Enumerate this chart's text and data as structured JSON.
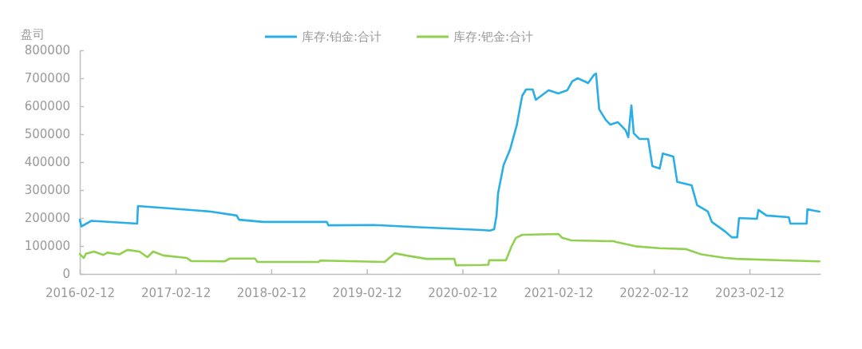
{
  "chart_data": {
    "type": "line",
    "ylabel": "盘司",
    "legend": "top",
    "grid": false,
    "marker": "none",
    "line_style": "solid",
    "xlim": [
      "2016-02-12",
      "2023-11-10"
    ],
    "xticks": [
      "2016-02-12",
      "2017-02-12",
      "2018-02-12",
      "2019-02-12",
      "2020-02-12",
      "2021-02-12",
      "2022-02-12",
      "2023-02-12"
    ],
    "ylim": [
      0,
      800000
    ],
    "yticks": [
      0,
      100000,
      200000,
      300000,
      400000,
      500000,
      600000,
      700000,
      800000
    ],
    "series": [
      {
        "name": "库存:铂金:合计",
        "color": "#29aee6",
        "x": [
          "2016-02-12",
          "2016-02-18",
          "2016-03-27",
          "2016-09-18",
          "2016-09-21",
          "2017-01-12",
          "2017-06-27",
          "2017-10-03",
          "2017-10-12",
          "2018-01-12",
          "2018-09-12",
          "2018-09-18",
          "2019-03-12",
          "2019-08-12",
          "2019-12-12",
          "2020-04-27",
          "2020-05-27",
          "2020-06-12",
          "2020-06-21",
          "2020-06-27",
          "2020-07-18",
          "2020-08-12",
          "2020-09-06",
          "2020-09-27",
          "2020-10-12",
          "2020-11-06",
          "2020-11-18",
          "2021-01-06",
          "2021-02-12",
          "2021-03-18",
          "2021-04-06",
          "2021-04-27",
          "2021-06-06",
          "2021-06-27",
          "2021-07-06",
          "2021-07-18",
          "2021-08-12",
          "2021-08-30",
          "2021-09-27",
          "2021-10-27",
          "2021-11-06",
          "2021-11-18",
          "2021-11-27",
          "2021-12-18",
          "2022-01-21",
          "2022-02-06",
          "2022-03-06",
          "2022-03-18",
          "2022-04-27",
          "2022-05-12",
          "2022-07-06",
          "2022-07-27",
          "2022-09-06",
          "2022-09-21",
          "2022-11-12",
          "2022-12-06",
          "2022-12-27",
          "2023-01-03",
          "2023-03-12",
          "2023-03-18",
          "2023-04-18",
          "2023-07-12",
          "2023-07-18",
          "2023-09-18",
          "2023-09-21",
          "2023-11-06"
        ],
        "values": [
          194000,
          170000,
          190000,
          180000,
          243000,
          235000,
          223000,
          209000,
          194000,
          186000,
          186000,
          174000,
          175000,
          168000,
          163000,
          157000,
          155000,
          160000,
          209000,
          289000,
          389000,
          446000,
          531000,
          637000,
          660000,
          660000,
          623000,
          657000,
          646000,
          657000,
          689000,
          700000,
          683000,
          711000,
          717000,
          589000,
          551000,
          534000,
          543000,
          514000,
          489000,
          603000,
          503000,
          483000,
          483000,
          386000,
          377000,
          431000,
          420000,
          329000,
          317000,
          246000,
          223000,
          186000,
          151000,
          131000,
          131000,
          200000,
          197000,
          229000,
          209000,
          203000,
          180000,
          180000,
          231000,
          223000
        ]
      },
      {
        "name": "库存:钯金:合计",
        "color": "#92d050",
        "x": [
          "2016-02-12",
          "2016-02-27",
          "2016-03-06",
          "2016-04-06",
          "2016-05-12",
          "2016-05-27",
          "2016-07-12",
          "2016-08-12",
          "2016-09-27",
          "2016-10-27",
          "2016-11-18",
          "2016-12-27",
          "2017-03-27",
          "2017-04-12",
          "2017-08-18",
          "2017-09-06",
          "2017-12-12",
          "2017-12-21",
          "2018-08-12",
          "2018-08-18",
          "2019-04-21",
          "2019-05-30",
          "2019-07-12",
          "2019-09-27",
          "2020-01-12",
          "2020-01-18",
          "2020-04-27",
          "2020-05-21",
          "2020-05-24",
          "2020-07-27",
          "2020-08-18",
          "2020-09-03",
          "2020-09-27",
          "2021-02-12",
          "2021-02-27",
          "2021-04-03",
          "2021-09-12",
          "2021-09-21",
          "2021-12-03",
          "2022-03-03",
          "2022-06-12",
          "2022-08-12",
          "2022-11-06",
          "2022-12-24",
          "2023-07-12",
          "2023-11-06"
        ],
        "values": [
          71000,
          57000,
          72000,
          80000,
          68000,
          76000,
          70000,
          86000,
          80000,
          60000,
          80000,
          66000,
          57000,
          46000,
          45000,
          55000,
          55000,
          43000,
          43000,
          48000,
          43000,
          74000,
          66000,
          54000,
          54000,
          31000,
          32000,
          33000,
          49000,
          49000,
          100000,
          129000,
          140000,
          143000,
          129000,
          120000,
          117000,
          114000,
          99000,
          92000,
          89000,
          70000,
          58000,
          54000,
          48000,
          45000
        ]
      }
    ]
  }
}
